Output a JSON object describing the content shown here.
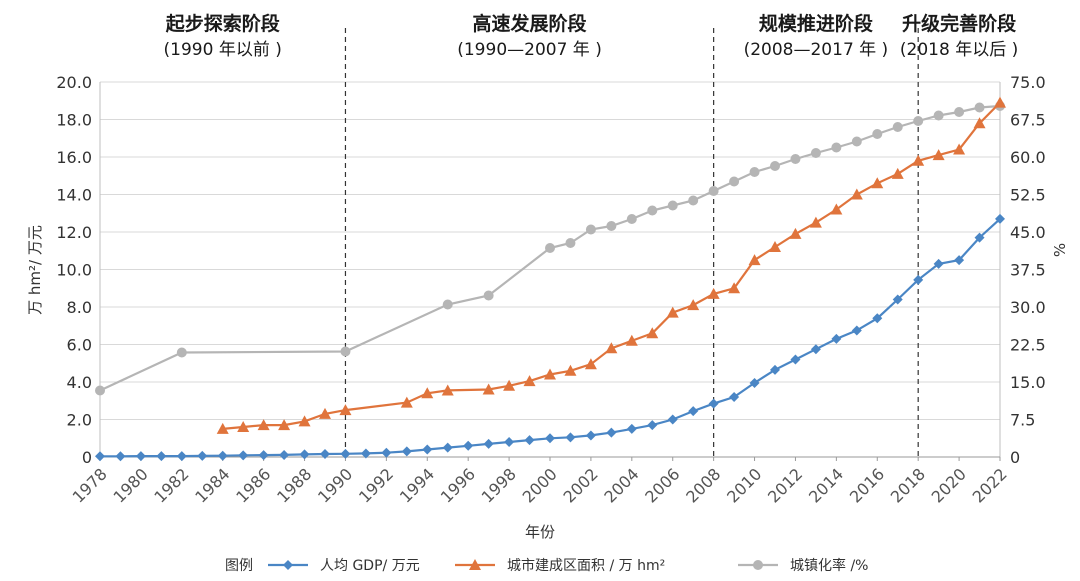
{
  "chart_data": {
    "type": "line",
    "xlabel": "年份",
    "ylabel_left": "万 hm²/ 万元",
    "ylabel_right": "%",
    "x_range": [
      1978,
      2022
    ],
    "y_left_range": [
      0,
      20
    ],
    "y_right_range": [
      0,
      75
    ],
    "y_left_ticks": [
      "0",
      "2.0",
      "4.0",
      "6.0",
      "8.0",
      "10.0",
      "12.0",
      "14.0",
      "16.0",
      "18.0",
      "20.0"
    ],
    "y_right_ticks": [
      "0",
      "7.5",
      "15.0",
      "22.5",
      "30.0",
      "37.5",
      "45.0",
      "52.5",
      "60.0",
      "67.5",
      "75.0"
    ],
    "x_ticks": [
      "1978",
      "1980",
      "1982",
      "1984",
      "1986",
      "1988",
      "1990",
      "1992",
      "1994",
      "1996",
      "1998",
      "2000",
      "2002",
      "2004",
      "2006",
      "2008",
      "2010",
      "2012",
      "2014",
      "2016",
      "2018",
      "2020",
      "2022"
    ],
    "phases": [
      {
        "title": "起步探索阶段",
        "subtitle": "(1990 年以前 )"
      },
      {
        "title": "高速发展阶段",
        "subtitle": "(1990—2007 年 )"
      },
      {
        "title": "规模推进阶段",
        "subtitle": "(2008—2017 年 )"
      },
      {
        "title": "升级完善阶段",
        "subtitle": "(2018 年以后 )"
      }
    ],
    "phase_boundaries": [
      1990,
      2008,
      2018
    ],
    "legend_title": "图例",
    "series": [
      {
        "name": "人均 GDP/ 万元",
        "axis": "left",
        "color": "#4a86c5",
        "marker": "diamond",
        "points": [
          [
            1978,
            0.04
          ],
          [
            1979,
            0.04
          ],
          [
            1980,
            0.05
          ],
          [
            1981,
            0.05
          ],
          [
            1982,
            0.05
          ],
          [
            1983,
            0.06
          ],
          [
            1984,
            0.07
          ],
          [
            1985,
            0.09
          ],
          [
            1986,
            0.1
          ],
          [
            1987,
            0.11
          ],
          [
            1988,
            0.14
          ],
          [
            1989,
            0.16
          ],
          [
            1990,
            0.17
          ],
          [
            1991,
            0.19
          ],
          [
            1992,
            0.23
          ],
          [
            1993,
            0.3
          ],
          [
            1994,
            0.4
          ],
          [
            1995,
            0.5
          ],
          [
            1996,
            0.6
          ],
          [
            1997,
            0.7
          ],
          [
            1998,
            0.8
          ],
          [
            1999,
            0.9
          ],
          [
            2000,
            1.0
          ],
          [
            2001,
            1.05
          ],
          [
            2002,
            1.15
          ],
          [
            2003,
            1.3
          ],
          [
            2004,
            1.5
          ],
          [
            2005,
            1.7
          ],
          [
            2006,
            2.0
          ],
          [
            2007,
            2.45
          ],
          [
            2008,
            2.85
          ],
          [
            2009,
            3.2
          ],
          [
            2010,
            3.95
          ],
          [
            2011,
            4.65
          ],
          [
            2012,
            5.2
          ],
          [
            2013,
            5.75
          ],
          [
            2014,
            6.3
          ],
          [
            2015,
            6.75
          ],
          [
            2016,
            7.4
          ],
          [
            2017,
            8.4
          ],
          [
            2018,
            9.45
          ],
          [
            2019,
            10.3
          ],
          [
            2020,
            10.5
          ],
          [
            2021,
            11.7
          ],
          [
            2022,
            12.7
          ]
        ]
      },
      {
        "name": "城市建成区面积 / 万 hm²",
        "axis": "left",
        "color": "#e0743c",
        "marker": "triangle",
        "points": [
          [
            1984,
            1.5
          ],
          [
            1985,
            1.6
          ],
          [
            1986,
            1.7
          ],
          [
            1987,
            1.7
          ],
          [
            1988,
            1.9
          ],
          [
            1989,
            2.3
          ],
          [
            1990,
            2.5
          ],
          [
            1993,
            2.9
          ],
          [
            1994,
            3.4
          ],
          [
            1995,
            3.55
          ],
          [
            1997,
            3.6
          ],
          [
            1998,
            3.8
          ],
          [
            1999,
            4.05
          ],
          [
            2000,
            4.4
          ],
          [
            2001,
            4.6
          ],
          [
            2002,
            4.95
          ],
          [
            2003,
            5.8
          ],
          [
            2004,
            6.2
          ],
          [
            2005,
            6.6
          ],
          [
            2006,
            7.7
          ],
          [
            2007,
            8.1
          ],
          [
            2008,
            8.7
          ],
          [
            2009,
            9.0
          ],
          [
            2010,
            10.5
          ],
          [
            2011,
            11.2
          ],
          [
            2012,
            11.9
          ],
          [
            2013,
            12.5
          ],
          [
            2014,
            13.2
          ],
          [
            2015,
            14.0
          ],
          [
            2016,
            14.6
          ],
          [
            2017,
            15.1
          ],
          [
            2018,
            15.8
          ],
          [
            2019,
            16.1
          ],
          [
            2020,
            16.4
          ],
          [
            2021,
            17.8
          ],
          [
            2022,
            18.9
          ]
        ]
      },
      {
        "name": "城镇化率 /%",
        "axis": "right",
        "color": "#b5b5b5",
        "marker": "circle",
        "points": [
          [
            1978,
            13.3
          ],
          [
            1982,
            20.9
          ],
          [
            1990,
            21.1
          ],
          [
            1995,
            30.5
          ],
          [
            1997,
            32.3
          ],
          [
            2000,
            41.8
          ],
          [
            2001,
            42.8
          ],
          [
            2002,
            45.5
          ],
          [
            2003,
            46.2
          ],
          [
            2004,
            47.6
          ],
          [
            2005,
            49.3
          ],
          [
            2006,
            50.3
          ],
          [
            2007,
            51.3
          ],
          [
            2008,
            53.2
          ],
          [
            2009,
            55.1
          ],
          [
            2010,
            57.0
          ],
          [
            2011,
            58.2
          ],
          [
            2012,
            59.6
          ],
          [
            2013,
            60.8
          ],
          [
            2014,
            61.9
          ],
          [
            2015,
            63.1
          ],
          [
            2016,
            64.6
          ],
          [
            2017,
            66.0
          ],
          [
            2018,
            67.2
          ],
          [
            2019,
            68.3
          ],
          [
            2020,
            69.0
          ],
          [
            2021,
            69.9
          ],
          [
            2022,
            70.2
          ]
        ]
      }
    ]
  }
}
